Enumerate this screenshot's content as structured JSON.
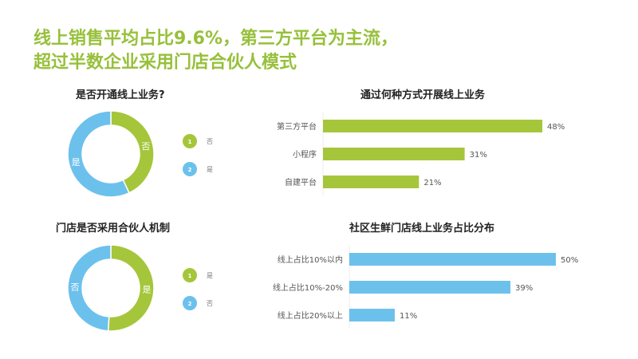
{
  "title_line1": "线上销售平均占比9.6%，第三方平台为主流，",
  "title_line2": "超过半数企业采用门店合伙人模式",
  "colors": {
    "green": "#a5c63b",
    "blue": "#6cc1ec"
  },
  "chart_data": [
    {
      "type": "pie",
      "title": "是否开通线上业务?",
      "slices": [
        {
          "label": "否",
          "value": 43,
          "color": "green",
          "num": "1"
        },
        {
          "label": "是",
          "value": 57,
          "color": "blue",
          "num": "2"
        }
      ]
    },
    {
      "type": "pie",
      "title": "门店是否采用合伙人机制",
      "slices": [
        {
          "label": "是",
          "value": 51,
          "color": "green",
          "num": "1"
        },
        {
          "label": "否",
          "value": 49,
          "color": "blue",
          "num": "2"
        }
      ]
    },
    {
      "type": "bar",
      "title": "通过何种方式开展线上业务",
      "categories": [
        "第三方平台",
        "小程序",
        "自建平台"
      ],
      "values": [
        48,
        31,
        21
      ],
      "labels": [
        "48%",
        "31%",
        "21%"
      ],
      "color": "green"
    },
    {
      "type": "bar",
      "title": "社区生鲜门店线上业务占比分布",
      "categories": [
        "线上占比10%以内",
        "线上占比10%-20%",
        "线上占比20%以上"
      ],
      "values": [
        50,
        39,
        11
      ],
      "labels": [
        "50%",
        "39%",
        "11%"
      ],
      "color": "blue"
    }
  ]
}
